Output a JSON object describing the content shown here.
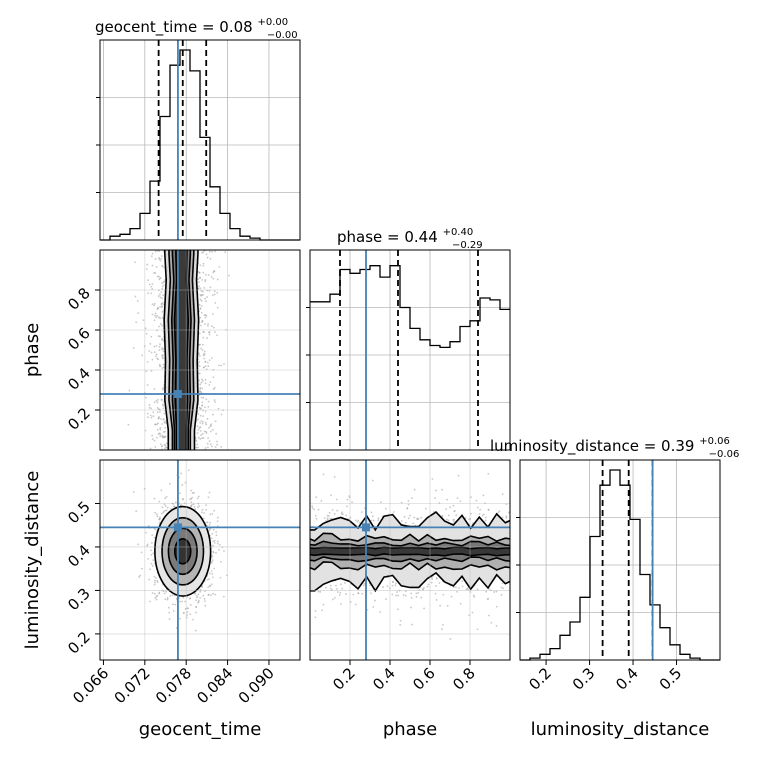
{
  "chart_data": {
    "type": "corner",
    "params": [
      "geocent_time",
      "phase",
      "luminosity_distance"
    ],
    "axis_labels": [
      "geocent_time",
      "phase",
      "luminosity_distance"
    ],
    "truth_color": "#4682b4",
    "truths": {
      "geocent_time": 0.0768,
      "phase": 0.28,
      "luminosity_distance": 0.445
    },
    "ranges": {
      "geocent_time": [
        0.0655,
        0.0945
      ],
      "phase": [
        0.0,
        1.0
      ],
      "luminosity_distance": [
        0.14,
        0.6
      ]
    },
    "ticks": {
      "geocent_time": [
        {
          "v": 0.066,
          "label": "0.066"
        },
        {
          "v": 0.072,
          "label": "0.072"
        },
        {
          "v": 0.078,
          "label": "0.078"
        },
        {
          "v": 0.084,
          "label": "0.084"
        },
        {
          "v": 0.09,
          "label": "0.090"
        }
      ],
      "phase": [
        {
          "v": 0.2,
          "label": "0.2"
        },
        {
          "v": 0.4,
          "label": "0.4"
        },
        {
          "v": 0.6,
          "label": "0.6"
        },
        {
          "v": 0.8,
          "label": "0.8"
        }
      ],
      "luminosity_distance": [
        {
          "v": 0.2,
          "label": "0.2"
        },
        {
          "v": 0.3,
          "label": "0.3"
        },
        {
          "v": 0.4,
          "label": "0.4"
        },
        {
          "v": 0.5,
          "label": "0.5"
        }
      ]
    },
    "diagonal": [
      {
        "param": "geocent_time",
        "title_prefix": "geocent_time = 0.08",
        "title_sup": "+0.00",
        "title_sub": "−0.00",
        "quantiles": [
          0.074,
          0.0775,
          0.0809
        ],
        "bin_edges": [
          0.0655,
          0.06695,
          0.0684,
          0.06985,
          0.0713,
          0.07275,
          0.0742,
          0.07565,
          0.0771,
          0.07855,
          0.08,
          0.08145,
          0.0829,
          0.08435,
          0.0858,
          0.08725,
          0.0887,
          0.09015,
          0.0916,
          0.09305,
          0.0945
        ],
        "counts": [
          0,
          0.02,
          0.03,
          0.06,
          0.14,
          0.31,
          0.65,
          0.92,
          1.0,
          0.89,
          0.54,
          0.28,
          0.14,
          0.06,
          0.02,
          0.01,
          0,
          0,
          0,
          0
        ]
      },
      {
        "param": "phase",
        "title_prefix": "phase = 0.44",
        "title_sup": "+0.40",
        "title_sub": "−0.29",
        "quantiles": [
          0.15,
          0.44,
          0.84
        ],
        "bin_edges": [
          0,
          0.05,
          0.1,
          0.15,
          0.2,
          0.25,
          0.3,
          0.35,
          0.4,
          0.45,
          0.5,
          0.55,
          0.6,
          0.65,
          0.7,
          0.75,
          0.8,
          0.85,
          0.9,
          0.95,
          1.0
        ],
        "counts": [
          0.78,
          0.78,
          0.82,
          0.95,
          0.93,
          0.95,
          0.97,
          0.91,
          0.97,
          0.75,
          0.64,
          0.58,
          0.55,
          0.54,
          0.57,
          0.65,
          0.68,
          0.8,
          0.79,
          0.74
        ]
      },
      {
        "param": "luminosity_distance",
        "title_prefix": "luminosity_distance = 0.39",
        "title_sup": "+0.06",
        "title_sub": "−0.06",
        "quantiles": [
          0.33,
          0.39,
          0.445
        ],
        "bin_edges": [
          0.14,
          0.163,
          0.186,
          0.209,
          0.232,
          0.255,
          0.278,
          0.301,
          0.324,
          0.347,
          0.37,
          0.393,
          0.416,
          0.439,
          0.462,
          0.485,
          0.508,
          0.531,
          0.554,
          0.577,
          0.6
        ],
        "counts": [
          0,
          0.01,
          0.03,
          0.06,
          0.13,
          0.2,
          0.33,
          0.65,
          0.92,
          1.0,
          0.92,
          0.74,
          0.45,
          0.29,
          0.17,
          0.08,
          0.03,
          0.01,
          0,
          0
        ]
      }
    ],
    "joint": [
      {
        "x": "geocent_time",
        "y": "phase",
        "mean": [
          0.0773,
          0.5
        ],
        "sigma": [
          0.0022,
          0.3
        ],
        "contour_widths": [
          [
            0.1,
            0.0013,
            0.001,
            0.0007
          ],
          [
            0.25,
            0.0018,
            0.0013,
            0.0009
          ],
          [
            0.45,
            0.0017,
            0.0012,
            0.0008
          ],
          [
            0.65,
            0.0019,
            0.0014,
            0.001
          ],
          [
            0.85,
            0.0016,
            0.0011,
            0.0007
          ],
          [
            0.98,
            0.0018,
            0.0013,
            0.0008
          ]
        ]
      },
      {
        "x": "geocent_time",
        "y": "luminosity_distance",
        "mean": [
          0.0775,
          0.39
        ],
        "sigma": [
          0.0021,
          0.055
        ],
        "ellipses": [
          [
            1.0,
            0.95
          ],
          [
            1.8,
            1.75
          ],
          [
            2.6,
            2.55
          ],
          [
            3.5,
            3.4
          ]
        ]
      },
      {
        "x": "phase",
        "y": "luminosity_distance",
        "mean": [
          0.5,
          0.39
        ],
        "sigma": [
          0.3,
          0.055
        ],
        "bands": [
          0.07,
          0.033,
          0.018,
          0.008
        ]
      }
    ]
  }
}
